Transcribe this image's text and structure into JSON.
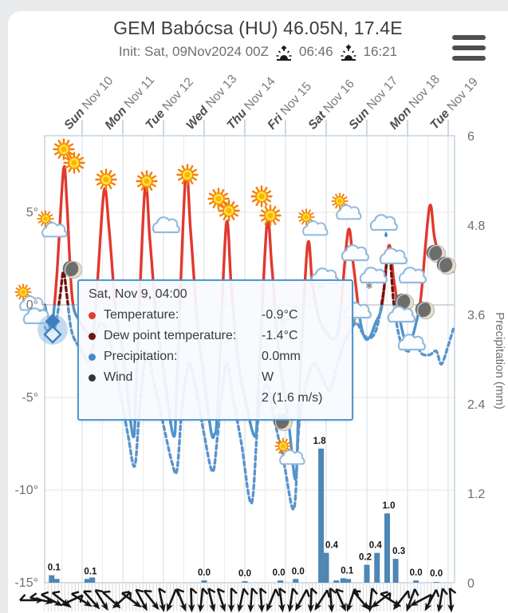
{
  "page": {
    "background": "#e9eaec",
    "card_background": "#ffffff"
  },
  "header": {
    "title": "GEM Babócsa (HU) 46.05N, 17.4E",
    "init_label": "Init: Sat, 09Nov2024 00Z",
    "sunrise_time": "06:46",
    "sunset_time": "16:21"
  },
  "tooltip": {
    "datetime": "Sat, Nov 9, 04:00",
    "rows": [
      {
        "color": "#e8392f",
        "label": "Temperature:",
        "value": "-0.9°C"
      },
      {
        "color": "#701310",
        "label": "Dew point temperature:",
        "value": "-1.4°C"
      },
      {
        "color": "#4a87c7",
        "label": "Precipitation:",
        "value": "0.0mm"
      },
      {
        "color": "#333333",
        "label": "Wind",
        "value": "W",
        "value2": "2 (1.6 m/s)"
      }
    ]
  },
  "chart_data": {
    "type": "meteogram (line + bar)",
    "title": "GEM Babócsa (HU) 46.05N, 17.4E",
    "x_start": "Sat Nov 9 02:00",
    "day_labels": [
      {
        "dow": "Sun",
        "date": "Nov 10"
      },
      {
        "dow": "Mon",
        "date": "Nov 11"
      },
      {
        "dow": "Tue",
        "date": "Nov 12"
      },
      {
        "dow": "Wed",
        "date": "Nov 13"
      },
      {
        "dow": "Thu",
        "date": "Nov 14"
      },
      {
        "dow": "Fri",
        "date": "Nov 15"
      },
      {
        "dow": "Sat",
        "date": "Nov 16"
      },
      {
        "dow": "Sun",
        "date": "Nov 17"
      },
      {
        "dow": "Mon",
        "date": "Nov 18"
      },
      {
        "dow": "Tue",
        "date": "Nov 19"
      }
    ],
    "temp_axis": {
      "ticks": [
        [
          "5°",
          5
        ],
        [
          "0°",
          0
        ],
        [
          "-5°",
          -5
        ],
        [
          "-10°",
          -10
        ],
        [
          "-15°",
          -15
        ]
      ],
      "unit": "°C"
    },
    "precip_axis": {
      "ticks": [
        [
          "6",
          6
        ],
        [
          "4.8",
          4.8
        ],
        [
          "3.6",
          3.6
        ],
        [
          "2.4",
          2.4
        ],
        [
          "1.2",
          1.2
        ],
        [
          "0",
          0
        ]
      ],
      "label": "Precipitation (mm)"
    },
    "series": [
      {
        "name": "Temperature",
        "style": "solid",
        "color_above": "#e2382e",
        "color_below": "#4d93cc",
        "points": [
          [
            2,
            0.0
          ],
          [
            4,
            -0.9
          ],
          [
            6,
            -1.3
          ],
          [
            9,
            1.5
          ],
          [
            13,
            7.3
          ],
          [
            15,
            5.5
          ],
          [
            18,
            0.5
          ],
          [
            22,
            -0.8
          ],
          [
            30,
            -1.5
          ],
          [
            33,
            1.2
          ],
          [
            37,
            6.2
          ],
          [
            40,
            4
          ],
          [
            44,
            -0.5
          ],
          [
            48,
            -2.5
          ],
          [
            54,
            -7.1
          ],
          [
            56,
            -4
          ],
          [
            61,
            6.2
          ],
          [
            64,
            3.5
          ],
          [
            68,
            -1
          ],
          [
            72,
            -3.5
          ],
          [
            78,
            -7.1
          ],
          [
            80,
            -4
          ],
          [
            85,
            6.9
          ],
          [
            88,
            4
          ],
          [
            92,
            -1
          ],
          [
            96,
            -4
          ],
          [
            100,
            -6.8
          ],
          [
            102,
            -7.0
          ],
          [
            104,
            -5.5
          ],
          [
            109,
            4.3
          ],
          [
            112,
            1
          ],
          [
            116,
            -3
          ],
          [
            120,
            -5
          ],
          [
            126,
            -7.1
          ],
          [
            128,
            -4.5
          ],
          [
            133,
            4.3
          ],
          [
            136,
            2
          ],
          [
            140,
            -2.5
          ],
          [
            146,
            -6.5
          ],
          [
            150,
            -9.4
          ],
          [
            152,
            -5
          ],
          [
            157,
            3.2
          ],
          [
            160,
            1
          ],
          [
            164,
            -0.8
          ],
          [
            168,
            -1.5
          ],
          [
            173,
            -1.8
          ],
          [
            176,
            -0.8
          ],
          [
            181,
            4.0
          ],
          [
            184,
            2.2
          ],
          [
            188,
            -0.8
          ],
          [
            191,
            -1.8
          ],
          [
            194,
            -1.7
          ],
          [
            197,
            -1
          ],
          [
            201,
            0
          ],
          [
            205,
            3.2
          ],
          [
            208,
            1.3
          ],
          [
            212,
            -1
          ],
          [
            215,
            -2.0
          ],
          [
            218,
            -1.9
          ],
          [
            221,
            -1
          ],
          [
            224,
            0.5
          ],
          [
            229,
            5.3
          ],
          [
            232,
            3.6
          ],
          [
            236,
            2.3
          ],
          [
            240,
            2.0
          ],
          [
            243,
            1.8
          ]
        ]
      },
      {
        "name": "Dew point temperature",
        "style": "dashed",
        "color_above": "#701310",
        "color_below": "#5b93cc",
        "points": [
          [
            2,
            -1.2
          ],
          [
            4,
            -1.4
          ],
          [
            8,
            -1.2
          ],
          [
            11,
            0.5
          ],
          [
            13,
            1.8
          ],
          [
            15,
            0.5
          ],
          [
            18,
            -1.5
          ],
          [
            24,
            -2.5
          ],
          [
            28,
            -3
          ],
          [
            33,
            -1.3
          ],
          [
            37,
            -1.1
          ],
          [
            41,
            -2.2
          ],
          [
            46,
            -4.5
          ],
          [
            51,
            -7
          ],
          [
            55,
            -8.7
          ],
          [
            58,
            -5.5
          ],
          [
            62,
            -2.6
          ],
          [
            66,
            -4
          ],
          [
            72,
            -6.5
          ],
          [
            77,
            -8.5
          ],
          [
            80,
            -8.9
          ],
          [
            83,
            -5.5
          ],
          [
            87,
            -3.2
          ],
          [
            91,
            -4.5
          ],
          [
            96,
            -7
          ],
          [
            101,
            -9.0
          ],
          [
            104,
            -7
          ],
          [
            109,
            -3.2
          ],
          [
            113,
            -5
          ],
          [
            118,
            -7.5
          ],
          [
            124,
            -10.7
          ],
          [
            128,
            -6
          ],
          [
            133,
            -4.3
          ],
          [
            137,
            -6
          ],
          [
            143,
            -8.5
          ],
          [
            149,
            -11.0
          ],
          [
            152,
            -6.5
          ],
          [
            157,
            -4.0
          ],
          [
            161,
            -3.2
          ],
          [
            166,
            -4.0
          ],
          [
            170,
            -4.6
          ],
          [
            174,
            -3.4
          ],
          [
            178,
            -2.2
          ],
          [
            182,
            -1.4
          ],
          [
            186,
            -1.0
          ],
          [
            190,
            -1.6
          ],
          [
            194,
            -1.8
          ],
          [
            198,
            -1.2
          ],
          [
            202,
            0.8
          ],
          [
            205,
            3.0
          ],
          [
            208,
            0.0
          ],
          [
            212,
            -2.0
          ],
          [
            217,
            -2.5
          ],
          [
            220,
            -1.8
          ],
          [
            224,
            -2.6
          ],
          [
            229,
            -2.7
          ],
          [
            233,
            -2.5
          ],
          [
            236,
            -3.2
          ],
          [
            240,
            -2.2
          ],
          [
            243,
            -1.3
          ]
        ]
      }
    ],
    "precip_bars": {
      "name": "Precipitation",
      "unit": "mm",
      "color": "#4e86b4",
      "bars": [
        [
          6,
          0.1,
          "0.1",
          3
        ],
        [
          9,
          0.05,
          null,
          0
        ],
        [
          27,
          0.05,
          "0.1",
          4
        ],
        [
          30,
          0.07,
          null,
          0
        ],
        [
          96,
          0.03,
          "0.0",
          0
        ],
        [
          120,
          0.02,
          "0.0",
          0
        ],
        [
          141,
          0.03,
          "0.0",
          -2
        ],
        [
          150,
          0.05,
          "0.0",
          3
        ],
        [
          165,
          1.8,
          "1.8",
          -2
        ],
        [
          168,
          0.4,
          "0.4",
          7
        ],
        [
          174,
          0.03,
          null,
          0
        ],
        [
          178,
          0.06,
          "0.1",
          5
        ],
        [
          181,
          0.05,
          null,
          0
        ],
        [
          192,
          0.24,
          "0.2",
          -2
        ],
        [
          198,
          0.4,
          "0.4",
          -2
        ],
        [
          204,
          0.93,
          "1.0",
          2
        ],
        [
          209,
          0.32,
          "0.3",
          4
        ],
        [
          221,
          0.03,
          "0.0",
          0
        ],
        [
          233,
          0.01,
          "0.0",
          0
        ]
      ]
    },
    "weather_icons": [
      [
        "sun",
        80,
        187
      ],
      [
        "sun",
        93,
        204
      ],
      [
        "suncloud",
        64,
        283
      ],
      [
        "suncloud",
        36,
        375
      ],
      [
        "cloud",
        46,
        397
      ],
      [
        "moon",
        92,
        338
      ],
      [
        "sun",
        133,
        225
      ],
      [
        "sun",
        184,
        227
      ],
      [
        "cloud",
        208,
        283
      ],
      [
        "sun",
        235,
        219
      ],
      [
        "sun",
        274,
        249
      ],
      [
        "sun",
        287,
        264
      ],
      [
        "sun",
        328,
        246
      ],
      [
        "sun",
        339,
        270
      ],
      [
        "suncloud",
        391,
        281
      ],
      [
        "suncloud",
        433,
        261
      ],
      [
        "raincloud",
        481,
        280
      ],
      [
        "snowcloud",
        407,
        347
      ],
      [
        "snowcloud",
        468,
        346
      ],
      [
        "snowcloud",
        360,
        392
      ],
      [
        "snowcloud",
        448,
        390
      ],
      [
        "cloud",
        445,
        318
      ],
      [
        "cloud",
        493,
        322
      ],
      [
        "cloud",
        517,
        346
      ],
      [
        "cloud",
        516,
        430
      ],
      [
        "moon",
        548,
        318
      ],
      [
        "moon",
        561,
        333
      ],
      [
        "moon",
        534,
        389
      ],
      [
        "moon",
        508,
        379
      ],
      [
        "cloud",
        503,
        395
      ],
      [
        "moon",
        356,
        529
      ],
      [
        "suncloud",
        362,
        568
      ]
    ],
    "wind_barbs": {
      "color": "#151515",
      "angles_deg": [
        0,
        12,
        28,
        38,
        155,
        32,
        48,
        58,
        42,
        138,
        36,
        62,
        52,
        78,
        112,
        68,
        88,
        96,
        76,
        72,
        90,
        102,
        94,
        86,
        112,
        82,
        98,
        118,
        92,
        122,
        86,
        66,
        108,
        50,
        96,
        142,
        32,
        128,
        110,
        152,
        118,
        100,
        86
      ]
    },
    "grid": {
      "day_line_color": "#d9e2ea",
      "half_day_line_color": "#ececec",
      "h_line_color": "#e6e6e6",
      "zero_line_color": "#bdbdbd",
      "border_color": "#c5d3e0"
    }
  }
}
